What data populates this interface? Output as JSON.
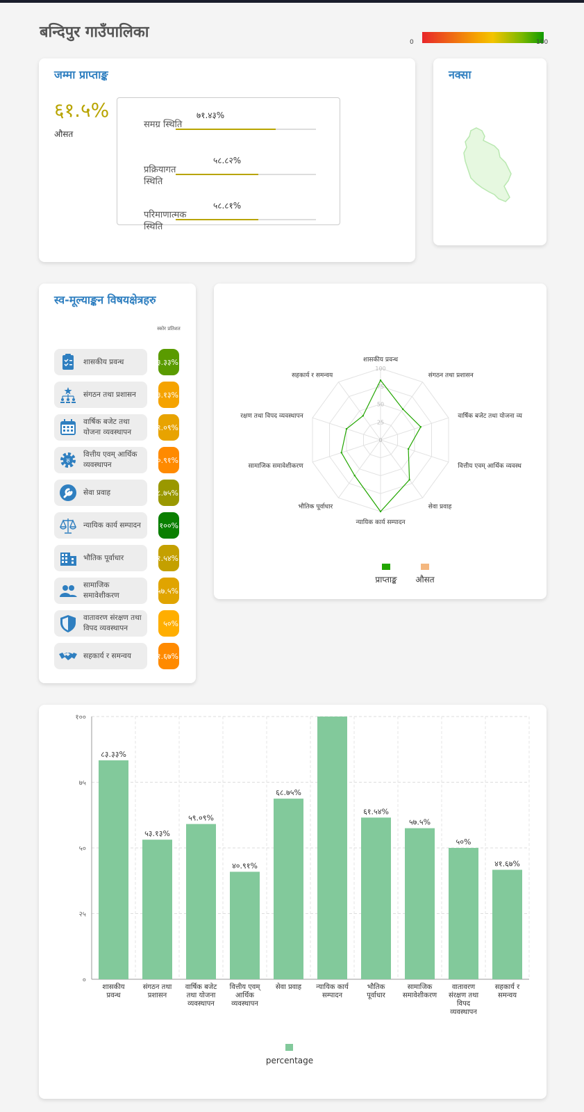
{
  "page": {
    "title": "बन्दिपुर गाउँपालिका",
    "scale": {
      "min": "0",
      "max": "100"
    }
  },
  "score_card": {
    "title": "जम्मा प्राप्ताङ्क",
    "overall": "६१.५%",
    "overall_label": "औसत",
    "bars": [
      {
        "label": "समग्र स्थिति",
        "pct_text": "७१.४३%",
        "value": 71.43
      },
      {
        "label": "प्रक्रियागत स्थिति",
        "pct_text": "५८.८२%",
        "value": 58.82
      },
      {
        "label": "परिमाणात्मक स्थिति",
        "pct_text": "५८.८१%",
        "value": 58.81
      }
    ]
  },
  "map_card": {
    "title": "नक्सा"
  },
  "domains_card": {
    "title": "स्व-मूल्याङ्कन विषयक्षेत्रहरु",
    "column_header": "स्कोर प्रतिशत",
    "items": [
      {
        "label": "शासकीय प्रवन्ध",
        "score": "८३.३३%",
        "icon": "clipboard-checklist-icon",
        "color": "#5a9b00"
      },
      {
        "label": "संगठन तथा प्रशासन",
        "score": "५३.१३%",
        "icon": "org-chart-icon",
        "color": "#f5a300"
      },
      {
        "label": "वार्षिक बजेट तथा योजना व्यवस्थापन",
        "score": "५९.०९%",
        "icon": "calendar-icon",
        "color": "#e8a300"
      },
      {
        "label": "वित्तीय एवम् आर्थिक व्यवस्थापन",
        "score": "४०.९१%",
        "icon": "gear-money-icon",
        "color": "#ff8a00"
      },
      {
        "label": "सेवा प्रवाह",
        "score": "६८.७५%",
        "icon": "wrench-icon",
        "color": "#9a9800"
      },
      {
        "label": "न्यायिक कार्य सम्पादन",
        "score": "१००%",
        "icon": "scales-icon",
        "color": "#0a7f00"
      },
      {
        "label": "भौतिक पूर्वाधार",
        "score": "६१.५४%",
        "icon": "building-icon",
        "color": "#c4a000"
      },
      {
        "label": "सामाजिक समावेशीकरण",
        "score": "५७.५%",
        "icon": "people-icon",
        "color": "#e0a400"
      },
      {
        "label": "वातावरण संरक्षण तथा विपद व्यवस्थापन",
        "score": "५०%",
        "icon": "shield-icon",
        "color": "#ffae00"
      },
      {
        "label": "सहकार्य र समन्वय",
        "score": "४१.६७%",
        "icon": "handshake-icon",
        "color": "#ff8a00"
      }
    ]
  },
  "chart_data": [
    {
      "type": "radar",
      "axes": [
        "शासकीय प्रवन्ध",
        "संगठन तथा प्रशासन",
        "वार्षिक बजेट तथा योजना व्य",
        "वित्तीय एवम् आर्थिक व्यवस्थ",
        "सेवा प्रवाह",
        "न्यायिक कार्य सम्पादन",
        "भौतिक पूर्वाधार",
        "सामाजिक समावेशीकरण",
        "रक्षण तथा विपद व्यवस्थापन",
        "सहकार्य र समन्वय"
      ],
      "ticks": [
        "0",
        "25",
        "50",
        "75",
        "100"
      ],
      "range": [
        0,
        100
      ],
      "series": [
        {
          "name": "प्राप्ताङ्क",
          "color": "#22a600",
          "values": [
            83.33,
            53.13,
            59.09,
            40.91,
            68.75,
            100,
            61.54,
            57.5,
            50,
            41.67
          ]
        },
        {
          "name": "औसत",
          "color": "#f4b77f",
          "values": []
        }
      ],
      "legend": "bottom"
    },
    {
      "type": "bar",
      "categories": [
        [
          "शासकीय",
          "प्रवन्ध"
        ],
        [
          "संगठन तथा",
          "प्रशासन"
        ],
        [
          "वार्षिक बजेट",
          "तथा योजना",
          "व्यवस्थापन"
        ],
        [
          "वित्तीय एवम्",
          "आर्थिक",
          "व्यवस्थापन"
        ],
        [
          "सेवा प्रवाह"
        ],
        [
          "न्यायिक कार्य",
          "सम्पादन"
        ],
        [
          "भौतिक",
          "पूर्वाधार"
        ],
        [
          "सामाजिक",
          "समावेशीकरण"
        ],
        [
          "वातावरण",
          "संरक्षण तथा",
          "विपद",
          "व्यवस्थापन"
        ],
        [
          "सहकार्य र",
          "समन्वय"
        ]
      ],
      "values": [
        83.33,
        53.13,
        59.09,
        40.91,
        68.75,
        100,
        61.54,
        57.5,
        50,
        41.67
      ],
      "value_labels": [
        "८३.३३%",
        "५३.१३%",
        "५९.०९%",
        "४०.९१%",
        "६८.७५%",
        "",
        "६१.५४%",
        "५७.५%",
        "५०%",
        "४१.६७%"
      ],
      "yticks": [
        "०",
        "२५",
        "५०",
        "७५",
        "१००"
      ],
      "ylim": [
        0,
        100
      ],
      "grid": true,
      "legend": "bottom",
      "series_name": "percentage",
      "color": "#82c99b"
    }
  ]
}
